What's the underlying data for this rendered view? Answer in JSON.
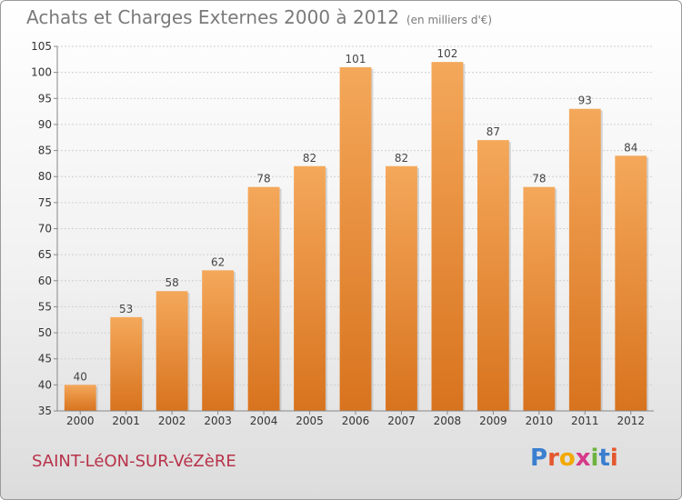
{
  "header": {
    "title": "Achats et Charges Externes 2000 à 2012",
    "unit": "(en milliers d'€)"
  },
  "footer": {
    "city": "SAINT-LéON-SUR-VéZèRE",
    "logo": {
      "letters": [
        "P",
        "r",
        "o",
        "x",
        "i",
        "t",
        "i"
      ],
      "colors": [
        "#3a7fd0",
        "#e4572e",
        "#f2a900",
        "#d63a8a",
        "#6cb33f",
        "#3a7fd0",
        "#e4572e"
      ]
    }
  },
  "colors": {
    "bar_top": "#f4a85a",
    "bar_bottom": "#d8731e",
    "grid": "#d0d0d0",
    "axis": "#888888"
  },
  "chart_data": {
    "type": "bar",
    "title": "Achats et Charges Externes 2000 à 2012",
    "categories": [
      "2000",
      "2001",
      "2002",
      "2003",
      "2004",
      "2005",
      "2006",
      "2007",
      "2008",
      "2009",
      "2010",
      "2011",
      "2012"
    ],
    "values": [
      40,
      53,
      58,
      62,
      78,
      82,
      101,
      82,
      102,
      87,
      78,
      93,
      84
    ],
    "ylim": [
      35,
      105
    ],
    "yticks": [
      35,
      40,
      45,
      50,
      55,
      60,
      65,
      70,
      75,
      80,
      85,
      90,
      95,
      100,
      105
    ],
    "grid": true,
    "xlabel": "",
    "ylabel": ""
  }
}
